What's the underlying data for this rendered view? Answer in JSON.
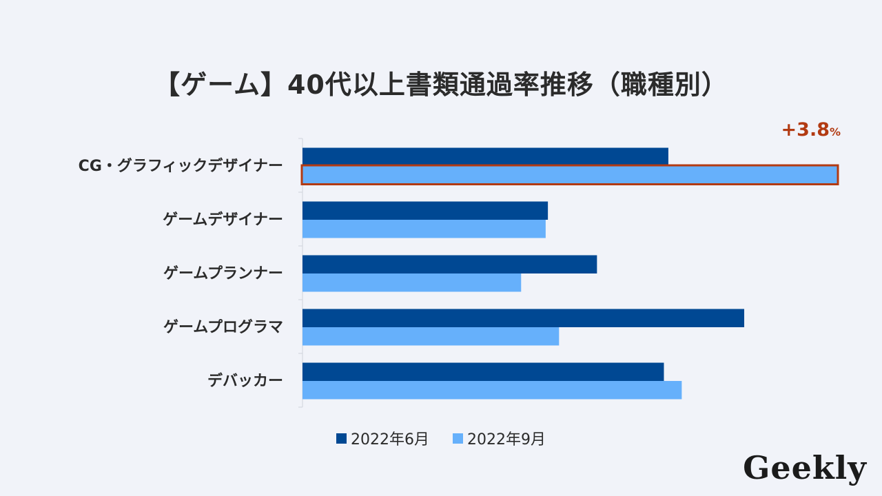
{
  "chart_data": {
    "type": "bar",
    "orientation": "horizontal",
    "title": "【ゲーム】40代以上書類通過率推移（職種別）",
    "categories": [
      "CG・グラフィックデザイナー",
      "ゲームデザイナー",
      "ゲームプランナー",
      "ゲームプログラマ",
      "デバッカー"
    ],
    "series": [
      {
        "name": "2022年6月",
        "color": "#004893",
        "values": [
          8.2,
          5.5,
          6.6,
          9.9,
          8.1
        ]
      },
      {
        "name": "2022年9月",
        "color": "#66b0fb",
        "values": [
          12.0,
          5.45,
          4.9,
          5.75,
          8.5
        ]
      }
    ],
    "xlim": [
      0,
      12
    ],
    "grid": false,
    "legend_position": "bottom",
    "highlight": {
      "category_index": 0,
      "series_index": 1,
      "color": "#b23a12",
      "annotation_value": "+3.8",
      "annotation_unit": "%"
    }
  },
  "brand": {
    "logo_text": "Geekly"
  }
}
